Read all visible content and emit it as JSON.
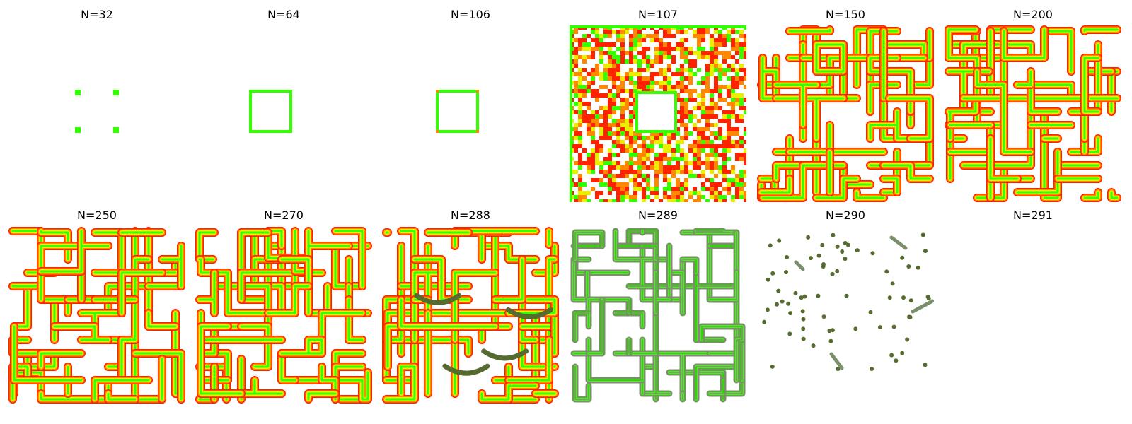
{
  "figure": {
    "panels": [
      {
        "title": "N=32"
      },
      {
        "title": "N=64"
      },
      {
        "title": "N=106"
      },
      {
        "title": "N=107"
      },
      {
        "title": "N=150"
      },
      {
        "title": "N=200"
      },
      {
        "title": "N=250"
      },
      {
        "title": "N=270"
      },
      {
        "title": "N=288"
      },
      {
        "title": "N=289"
      },
      {
        "title": "N=290"
      },
      {
        "title": "N=291"
      }
    ]
  },
  "colors": {
    "background": "#ffffff",
    "green": "#33ff00",
    "yellow": "#e8f000",
    "orange": "#ff8800",
    "red": "#ff2200",
    "dark_green": "#556b2f",
    "gray_green": "#7a8f6a"
  }
}
